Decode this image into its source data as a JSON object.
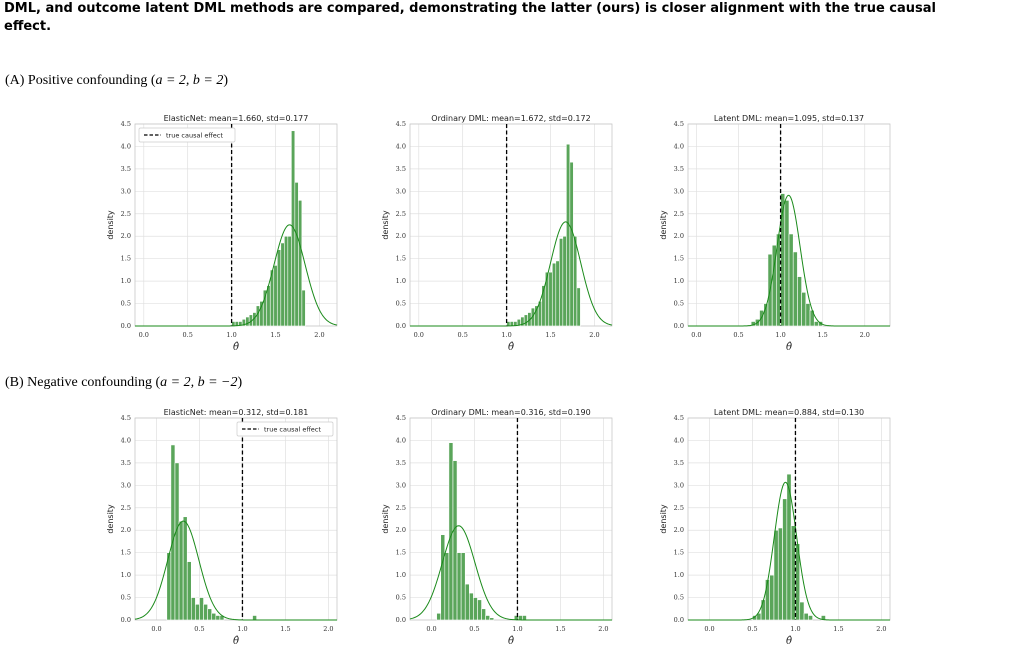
{
  "caption": {
    "line1": "DML, and outcome latent DML methods are compared, demonstrating the latter (ours) is closer alignment with the true causal",
    "line2": "effect."
  },
  "sections": [
    {
      "prefix": "(A) Positive confounding (",
      "math": "a = 2, b = 2",
      "suffix": ")"
    },
    {
      "prefix": "(B) Negative confounding (",
      "math": "a = 2, b = −2",
      "suffix": ")"
    }
  ],
  "axis_text": {
    "ylabel": "density",
    "xlabel": "θ̂",
    "legend_label": "true causal effect"
  },
  "colors": {
    "bar": "#5aa55a",
    "curve": "#1a8a1a",
    "true_line": "#000000",
    "grid": "#e0e0e0"
  },
  "chart_data": [
    {
      "type": "bar",
      "title": "ElasticNet: mean=1.660, std=0.177",
      "true_effect": 1.0,
      "xlim": [
        -0.1,
        2.2
      ],
      "ylim": [
        0,
        4.5
      ],
      "xticks": [
        0.0,
        0.5,
        1.0,
        1.5,
        2.0
      ],
      "xtick_labels": [
        "0.0",
        "0.5",
        "1.0",
        "1.5",
        "2.0"
      ],
      "yticks": [
        0,
        0.5,
        1,
        1.5,
        2,
        2.5,
        3,
        3.5,
        4,
        4.5
      ],
      "ytick_labels": [
        "0.0",
        "0.5",
        "1.0",
        "1.5",
        "2.0",
        "2.5",
        "3.0",
        "3.5",
        "4.0",
        "4.5"
      ],
      "legend": "top-left",
      "bin_width": 0.04,
      "bin_starts": [
        1.0,
        1.04,
        1.08,
        1.12,
        1.16,
        1.2,
        1.24,
        1.28,
        1.32,
        1.36,
        1.4,
        1.44,
        1.48,
        1.52,
        1.56,
        1.6,
        1.64,
        1.68,
        1.72,
        1.76,
        1.8
      ],
      "densities": [
        0.1,
        0.1,
        0.1,
        0.15,
        0.2,
        0.25,
        0.3,
        0.45,
        0.55,
        0.8,
        0.9,
        1.25,
        1.35,
        1.7,
        1.85,
        2.0,
        2.0,
        4.35,
        3.2,
        2.8,
        0.8
      ],
      "normal_fit": {
        "mean": 1.66,
        "std": 0.177
      }
    },
    {
      "type": "bar",
      "title": "Ordinary DML: mean=1.672, std=0.172",
      "true_effect": 1.0,
      "xlim": [
        -0.1,
        2.2
      ],
      "ylim": [
        0,
        4.5
      ],
      "xticks": [
        0.0,
        0.5,
        1.0,
        1.5,
        2.0
      ],
      "xtick_labels": [
        "0.0",
        "0.5",
        "1.0",
        "1.5",
        "2.0"
      ],
      "yticks": [
        0,
        0.5,
        1,
        1.5,
        2,
        2.5,
        3,
        3.5,
        4,
        4.5
      ],
      "ytick_labels": [
        "0.0",
        "0.5",
        "1.0",
        "1.5",
        "2.0",
        "2.5",
        "3.0",
        "3.5",
        "4.0",
        "4.5"
      ],
      "legend": "none",
      "bin_width": 0.04,
      "bin_starts": [
        1.0,
        1.04,
        1.08,
        1.12,
        1.16,
        1.2,
        1.24,
        1.28,
        1.32,
        1.36,
        1.4,
        1.44,
        1.48,
        1.52,
        1.56,
        1.6,
        1.64,
        1.68,
        1.72,
        1.76,
        1.8
      ],
      "densities": [
        0.1,
        0.1,
        0.1,
        0.15,
        0.2,
        0.25,
        0.3,
        0.4,
        0.45,
        0.55,
        0.9,
        1.2,
        1.2,
        1.4,
        1.45,
        1.95,
        2.0,
        4.05,
        3.65,
        2.0,
        0.85
      ],
      "normal_fit": {
        "mean": 1.672,
        "std": 0.172
      }
    },
    {
      "type": "bar",
      "title": "Latent DML: mean=1.095, std=0.137",
      "true_effect": 1.0,
      "xlim": [
        -0.1,
        2.3
      ],
      "ylim": [
        0,
        4.5
      ],
      "xticks": [
        0.0,
        0.5,
        1.0,
        1.5,
        2.0
      ],
      "xtick_labels": [
        "0.0",
        "0.5",
        "1.0",
        "1.5",
        "2.0"
      ],
      "yticks": [
        0,
        0.5,
        1,
        1.5,
        2,
        2.5,
        3,
        3.5,
        4,
        4.5
      ],
      "ytick_labels": [
        "0.0",
        "0.5",
        "1.0",
        "1.5",
        "2.0",
        "2.5",
        "3.0",
        "3.5",
        "4.0",
        "4.5"
      ],
      "legend": "none",
      "bin_width": 0.05,
      "bin_starts": [
        0.65,
        0.7,
        0.75,
        0.8,
        0.85,
        0.9,
        0.95,
        1.0,
        1.05,
        1.1,
        1.15,
        1.2,
        1.25,
        1.3,
        1.35,
        1.4,
        1.45
      ],
      "densities": [
        0.1,
        0.15,
        0.35,
        0.5,
        1.6,
        1.8,
        2.05,
        2.95,
        2.8,
        2.05,
        1.65,
        1.1,
        0.75,
        0.5,
        0.35,
        0.1,
        0.1
      ],
      "normal_fit": {
        "mean": 1.095,
        "std": 0.137
      }
    },
    {
      "type": "bar",
      "title": "ElasticNet: mean=0.312, std=0.181",
      "true_effect": 1.0,
      "xlim": [
        -0.25,
        2.1
      ],
      "ylim": [
        0,
        4.5
      ],
      "xticks": [
        0.0,
        0.5,
        1.0,
        1.5,
        2.0
      ],
      "xtick_labels": [
        "0.0",
        "0.5",
        "1.0",
        "1.5",
        "2.0"
      ],
      "yticks": [
        0,
        0.5,
        1,
        1.5,
        2,
        2.5,
        3,
        3.5,
        4,
        4.5
      ],
      "ytick_labels": [
        "0.0",
        "0.5",
        "1.0",
        "1.5",
        "2.0",
        "2.5",
        "3.0",
        "3.5",
        "4.0",
        "4.5"
      ],
      "legend": "top-right",
      "bin_width": 0.0475,
      "bin_starts": [
        0.12,
        0.1675,
        0.215,
        0.2625,
        0.31,
        0.3575,
        0.405,
        0.4525,
        0.5,
        0.5475,
        0.595,
        0.6425,
        0.69,
        0.7375,
        0.785,
        0.8325,
        0.88,
        0.9275,
        0.975,
        1.0225,
        1.07,
        1.1175
      ],
      "densities": [
        1.5,
        3.9,
        3.5,
        2.2,
        2.3,
        1.3,
        0.5,
        0.35,
        0.5,
        0.35,
        0.25,
        0.15,
        0.1,
        0.1,
        0.0,
        0.0,
        0.0,
        0.0,
        0.0,
        0.0,
        0.0,
        0.1
      ],
      "normal_fit": {
        "mean": 0.312,
        "std": 0.181
      }
    },
    {
      "type": "bar",
      "title": "Ordinary DML: mean=0.316, std=0.190",
      "true_effect": 1.0,
      "xlim": [
        -0.25,
        2.1
      ],
      "ylim": [
        0,
        4.5
      ],
      "xticks": [
        0.0,
        0.5,
        1.0,
        1.5,
        2.0
      ],
      "xtick_labels": [
        "0.0",
        "0.5",
        "1.0",
        "1.5",
        "2.0"
      ],
      "yticks": [
        0,
        0.5,
        1,
        1.5,
        2,
        2.5,
        3,
        3.5,
        4,
        4.5
      ],
      "ytick_labels": [
        "0.0",
        "0.5",
        "1.0",
        "1.5",
        "2.0",
        "2.5",
        "3.0",
        "3.5",
        "4.0",
        "4.5"
      ],
      "legend": "none",
      "bin_width": 0.0475,
      "bin_starts": [
        0.06,
        0.1075,
        0.155,
        0.2025,
        0.25,
        0.2975,
        0.345,
        0.3925,
        0.44,
        0.4875,
        0.535,
        0.5825,
        0.63,
        0.6775,
        0.725,
        0.7725,
        0.82,
        0.8675,
        0.915,
        0.9625,
        1.01,
        1.0575
      ],
      "densities": [
        0.15,
        1.9,
        1.5,
        3.95,
        3.55,
        1.5,
        1.5,
        0.8,
        0.6,
        0.5,
        0.45,
        0.25,
        0.1,
        0.05,
        0.0,
        0.0,
        0.0,
        0.0,
        0.0,
        0.1,
        0.1,
        0.1
      ],
      "normal_fit": {
        "mean": 0.316,
        "std": 0.19
      }
    },
    {
      "type": "bar",
      "title": "Latent DML: mean=0.884, std=0.130",
      "true_effect": 1.0,
      "xlim": [
        -0.25,
        2.1
      ],
      "ylim": [
        0,
        4.5
      ],
      "xticks": [
        0.0,
        0.5,
        1.0,
        1.5,
        2.0
      ],
      "xtick_labels": [
        "0.0",
        "0.5",
        "1.0",
        "1.5",
        "2.0"
      ],
      "yticks": [
        0,
        0.5,
        1,
        1.5,
        2,
        2.5,
        3,
        3.5,
        4,
        4.5
      ],
      "ytick_labels": [
        "0.0",
        "0.5",
        "1.0",
        "1.5",
        "2.0",
        "2.5",
        "3.0",
        "3.5",
        "4.0",
        "4.5"
      ],
      "legend": "none",
      "bin_width": 0.05,
      "bin_starts": [
        0.5,
        0.55,
        0.6,
        0.65,
        0.7,
        0.75,
        0.8,
        0.85,
        0.9,
        0.95,
        1.0,
        1.05,
        1.1,
        1.15,
        1.2,
        1.25,
        1.3
      ],
      "densities": [
        0.1,
        0.15,
        0.45,
        0.9,
        1.0,
        2.0,
        2.05,
        2.7,
        3.25,
        2.1,
        1.7,
        0.4,
        0.15,
        0.1,
        0.0,
        0.0,
        0.1
      ],
      "normal_fit": {
        "mean": 0.884,
        "std": 0.13
      }
    }
  ]
}
